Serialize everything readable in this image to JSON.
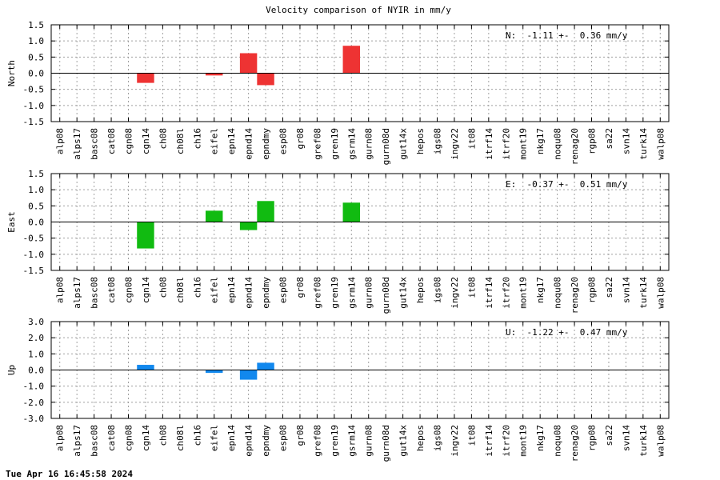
{
  "footer": {
    "timestamp": "Tue Apr 16 16:45:58 2024"
  },
  "chart_data": {
    "type": "bar",
    "title": "Velocity comparison of NYIR in mm/y",
    "categories": [
      "alp08",
      "alps17",
      "basc08",
      "cat08",
      "cgn08",
      "cgn14",
      "ch08",
      "ch08l",
      "ch16",
      "eifel",
      "epn14",
      "epnd14",
      "epndmy",
      "esp08",
      "gr08",
      "gref08",
      "gren19",
      "gsrm14",
      "gurn08",
      "gurn08d",
      "gut14x",
      "hepos",
      "igs08",
      "ingv22",
      "it08",
      "itrf14",
      "itrf20",
      "mont19",
      "nkg17",
      "noqu08",
      "renag20",
      "rgp08",
      "sa22",
      "svn14",
      "turk14",
      "walp08"
    ],
    "grid": true,
    "panels": [
      {
        "ylabel": "North",
        "ylim": [
          -1.5,
          1.5
        ],
        "yticks": [
          "1.5",
          "1.0",
          "0.5",
          "0.0",
          "-0.5",
          "-1.0",
          "-1.5"
        ],
        "color": "#ee3333",
        "stat": "N:  -1.11 +-  0.36 mm/y",
        "values": [
          null,
          null,
          null,
          null,
          null,
          -0.3,
          null,
          null,
          null,
          -0.07,
          null,
          0.62,
          -0.37,
          null,
          null,
          null,
          null,
          0.85,
          null,
          null,
          null,
          null,
          null,
          null,
          null,
          null,
          null,
          null,
          null,
          null,
          null,
          null,
          null,
          null,
          null,
          null
        ]
      },
      {
        "ylabel": "East",
        "ylim": [
          -1.5,
          1.5
        ],
        "yticks": [
          "1.5",
          "1.0",
          "0.5",
          "0.0",
          "-0.5",
          "-1.0",
          "-1.5"
        ],
        "color": "#11bb11",
        "stat": "E:  -0.37 +-  0.51 mm/y",
        "values": [
          null,
          null,
          null,
          null,
          null,
          -0.82,
          null,
          null,
          null,
          0.35,
          null,
          -0.25,
          0.65,
          null,
          null,
          null,
          null,
          0.6,
          null,
          null,
          null,
          null,
          null,
          null,
          null,
          null,
          null,
          null,
          null,
          null,
          null,
          null,
          null,
          null,
          null,
          null
        ]
      },
      {
        "ylabel": "Up",
        "ylim": [
          -3.0,
          3.0
        ],
        "yticks": [
          "3.0",
          "2.0",
          "1.0",
          "0.0",
          "-1.0",
          "-2.0",
          "-3.0"
        ],
        "color": "#1188ee",
        "stat": "U:  -1.22 +-  0.47 mm/y",
        "values": [
          null,
          null,
          null,
          null,
          null,
          0.32,
          null,
          null,
          null,
          -0.18,
          null,
          -0.6,
          0.45,
          null,
          null,
          null,
          null,
          null,
          null,
          null,
          null,
          null,
          null,
          null,
          null,
          null,
          null,
          null,
          null,
          null,
          null,
          null,
          null,
          null,
          null,
          null
        ]
      }
    ]
  }
}
